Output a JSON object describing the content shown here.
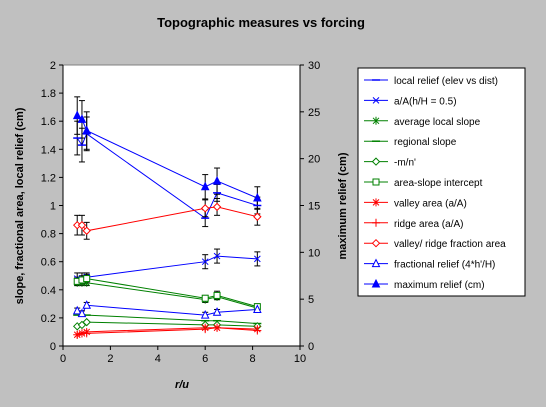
{
  "chart_data": {
    "type": "line",
    "title": "Topographic measures vs forcing",
    "xlabel": "r/u",
    "ylabel": "slope, fractional area, local relief (cm)",
    "y2label": "maximum relief (cm)",
    "xlim": [
      0,
      10
    ],
    "ylim": [
      0,
      2
    ],
    "y2lim": [
      0,
      30
    ],
    "x_ticks": [
      "0",
      "2",
      "4",
      "6",
      "8",
      "10"
    ],
    "y_ticks": [
      "0",
      "0.2",
      "0.4",
      "0.6",
      "0.8",
      "1",
      "1.2",
      "1.4",
      "1.6",
      "1.8",
      "2"
    ],
    "y2_ticks": [
      "0",
      "5",
      "10",
      "15",
      "20",
      "25",
      "30"
    ],
    "grid": false,
    "legend_position": "right",
    "x": [
      0.6,
      0.8,
      1.0,
      6.0,
      6.5,
      8.2
    ],
    "series": [
      {
        "name": "local relief (elev vs dist)",
        "axis": "left",
        "color": "#0000ff",
        "marker": "dash",
        "values": [
          1.48,
          1.43,
          1.51,
          0.91,
          1.09,
          1.0
        ],
        "errors": [
          0.12,
          0.12,
          0.12,
          0.06,
          0.06,
          0.06
        ]
      },
      {
        "name": "a/A(h/H = 0.5)",
        "axis": "left",
        "color": "#0000ff",
        "marker": "x",
        "values": [
          0.48,
          0.48,
          0.49,
          0.6,
          0.64,
          0.62
        ],
        "errors": [
          0.04,
          0.04,
          0.03,
          0.05,
          0.05,
          0.05
        ]
      },
      {
        "name": "average local slope",
        "axis": "left",
        "color": "#008000",
        "marker": "star",
        "values": [
          0.45,
          0.45,
          0.45,
          0.33,
          0.35,
          0.27
        ],
        "errors": [
          0.02,
          0.02,
          0.02,
          0.02,
          0.02,
          0.02
        ]
      },
      {
        "name": "regional slope",
        "axis": "left",
        "color": "#008000",
        "marker": "dash",
        "values": [
          0.22,
          0.22,
          0.22,
          0.18,
          0.18,
          0.16
        ],
        "errors": []
      },
      {
        "name": "-m/n'",
        "axis": "left",
        "color": "#008000",
        "marker": "diamond",
        "values": [
          0.14,
          0.15,
          0.17,
          0.15,
          0.15,
          0.14
        ],
        "errors": []
      },
      {
        "name": "area-slope intercept",
        "axis": "left",
        "color": "#008000",
        "marker": "square",
        "values": [
          0.46,
          0.47,
          0.48,
          0.34,
          0.36,
          0.28
        ],
        "errors": [
          0.03,
          0.03,
          0.03,
          0.02,
          0.03,
          0.02
        ]
      },
      {
        "name": "valley area (a/A)",
        "axis": "left",
        "color": "#ff0000",
        "marker": "star",
        "values": [
          0.08,
          0.09,
          0.1,
          0.13,
          0.13,
          0.12
        ],
        "errors": []
      },
      {
        "name": "ridge area (a/A)",
        "axis": "left",
        "color": "#ff0000",
        "marker": "plus",
        "values": [
          0.08,
          0.09,
          0.09,
          0.12,
          0.13,
          0.11
        ],
        "errors": []
      },
      {
        "name": "valley/ ridge fraction area",
        "axis": "left",
        "color": "#ff0000",
        "marker": "diamond",
        "values": [
          0.86,
          0.86,
          0.82,
          0.98,
          0.99,
          0.92
        ],
        "errors": [
          0.07,
          0.07,
          0.06,
          0.06,
          0.06,
          0.06
        ]
      },
      {
        "name": "fractional relief (4*h'/H)",
        "axis": "left",
        "color": "#0000ff",
        "marker": "triangle-open",
        "values": [
          0.25,
          0.23,
          0.29,
          0.22,
          0.24,
          0.26
        ],
        "errors": [
          0.02,
          0.02,
          0.02,
          0.02,
          0.02,
          0.02
        ]
      },
      {
        "name": "maximum relief (cm)",
        "axis": "right",
        "color": "#0000ff",
        "marker": "triangle-filled",
        "values": [
          24.6,
          24.2,
          23.0,
          17.0,
          17.6,
          15.8
        ],
        "errors": [
          2.0,
          2.0,
          2.0,
          1.3,
          1.4,
          1.2
        ]
      }
    ]
  }
}
